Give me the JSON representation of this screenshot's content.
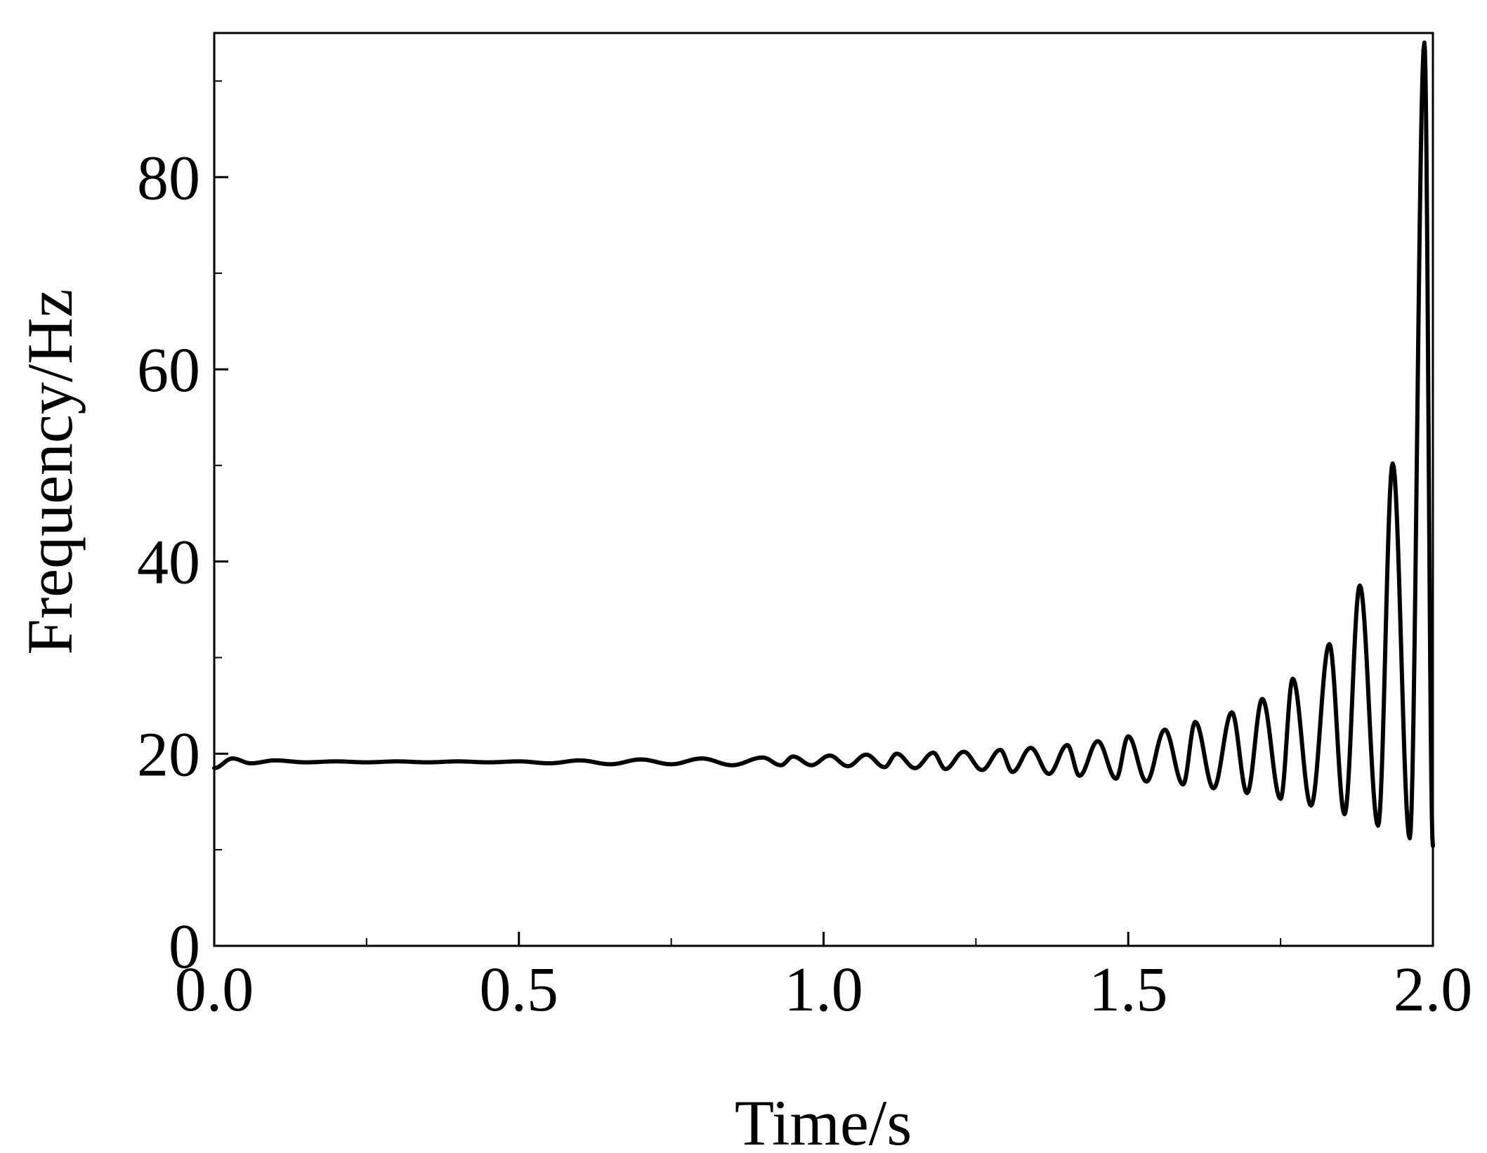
{
  "chart_data": {
    "type": "line",
    "title": "",
    "xlabel": "Time/s",
    "ylabel": "Frequency/Hz",
    "xlim": [
      0.0,
      2.0
    ],
    "ylim": [
      0,
      95
    ],
    "x_ticks": [
      0.0,
      0.5,
      1.0,
      1.5,
      2.0
    ],
    "x_tick_labels": [
      "0.0",
      "0.5",
      "1.0",
      "1.5",
      "2.0"
    ],
    "x_minor_ticks": [
      0.25,
      0.75,
      1.25,
      1.75
    ],
    "y_ticks": [
      0,
      20,
      40,
      60,
      80
    ],
    "y_tick_labels": [
      "0",
      "20",
      "40",
      "60",
      "80"
    ],
    "y_minor_ticks": [
      10,
      30,
      50,
      70,
      90
    ],
    "grid": false,
    "line_color": "#000000",
    "series": [
      {
        "peaks": [
          {
            "x": 0.03,
            "y": 19.5
          },
          {
            "x": 0.1,
            "y": 19.3
          },
          {
            "x": 0.2,
            "y": 19.2
          },
          {
            "x": 0.3,
            "y": 19.2
          },
          {
            "x": 0.4,
            "y": 19.2
          },
          {
            "x": 0.5,
            "y": 19.2
          },
          {
            "x": 0.6,
            "y": 19.3
          },
          {
            "x": 0.7,
            "y": 19.4
          },
          {
            "x": 0.8,
            "y": 19.5
          },
          {
            "x": 0.9,
            "y": 19.6
          },
          {
            "x": 0.95,
            "y": 19.7
          },
          {
            "x": 1.01,
            "y": 19.8
          },
          {
            "x": 1.07,
            "y": 19.9
          },
          {
            "x": 1.12,
            "y": 20.0
          },
          {
            "x": 1.18,
            "y": 20.1
          },
          {
            "x": 1.23,
            "y": 20.2
          },
          {
            "x": 1.29,
            "y": 20.4
          },
          {
            "x": 1.34,
            "y": 20.6
          },
          {
            "x": 1.4,
            "y": 20.9
          },
          {
            "x": 1.45,
            "y": 21.3
          },
          {
            "x": 1.5,
            "y": 21.8
          },
          {
            "x": 1.56,
            "y": 22.5
          },
          {
            "x": 1.61,
            "y": 23.3
          },
          {
            "x": 1.67,
            "y": 24.3
          },
          {
            "x": 1.72,
            "y": 25.7
          },
          {
            "x": 1.77,
            "y": 27.8
          },
          {
            "x": 1.83,
            "y": 31.4
          },
          {
            "x": 1.88,
            "y": 37.5
          },
          {
            "x": 1.934,
            "y": 50.2
          },
          {
            "x": 1.986,
            "y": 94.0
          }
        ],
        "troughs": [
          {
            "x": 0.0,
            "y": 18.5
          },
          {
            "x": 0.06,
            "y": 19.0
          },
          {
            "x": 0.15,
            "y": 19.1
          },
          {
            "x": 0.25,
            "y": 19.1
          },
          {
            "x": 0.35,
            "y": 19.1
          },
          {
            "x": 0.45,
            "y": 19.1
          },
          {
            "x": 0.55,
            "y": 19.0
          },
          {
            "x": 0.65,
            "y": 18.9
          },
          {
            "x": 0.75,
            "y": 18.9
          },
          {
            "x": 0.85,
            "y": 18.8
          },
          {
            "x": 0.93,
            "y": 18.8
          },
          {
            "x": 0.98,
            "y": 18.8
          },
          {
            "x": 1.04,
            "y": 18.7
          },
          {
            "x": 1.1,
            "y": 18.6
          },
          {
            "x": 1.15,
            "y": 18.5
          },
          {
            "x": 1.2,
            "y": 18.4
          },
          {
            "x": 1.26,
            "y": 18.3
          },
          {
            "x": 1.31,
            "y": 18.1
          },
          {
            "x": 1.37,
            "y": 17.9
          },
          {
            "x": 1.42,
            "y": 17.7
          },
          {
            "x": 1.48,
            "y": 17.4
          },
          {
            "x": 1.53,
            "y": 17.1
          },
          {
            "x": 1.59,
            "y": 16.8
          },
          {
            "x": 1.64,
            "y": 16.4
          },
          {
            "x": 1.695,
            "y": 15.9
          },
          {
            "x": 1.75,
            "y": 15.3
          },
          {
            "x": 1.8,
            "y": 14.6
          },
          {
            "x": 1.855,
            "y": 13.7
          },
          {
            "x": 1.91,
            "y": 12.5
          },
          {
            "x": 1.962,
            "y": 11.2
          },
          {
            "x": 2.0,
            "y": 10.4
          }
        ]
      }
    ]
  }
}
